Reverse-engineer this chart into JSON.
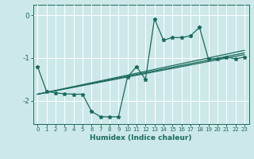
{
  "xlabel": "Humidex (Indice chaleur)",
  "bg_color": "#cde8e8",
  "grid_color": "#ffffff",
  "line_color": "#1a6b5a",
  "xlim": [
    -0.5,
    23.5
  ],
  "ylim": [
    -2.55,
    0.25
  ],
  "xticks": [
    0,
    1,
    2,
    3,
    4,
    5,
    6,
    7,
    8,
    9,
    10,
    11,
    12,
    13,
    14,
    15,
    16,
    17,
    18,
    19,
    20,
    21,
    22,
    23
  ],
  "yticks": [
    0,
    -1,
    -2
  ],
  "lines": [
    {
      "x": [
        0,
        1,
        2,
        3,
        4,
        5,
        6,
        7,
        8,
        9,
        10,
        11,
        12,
        13,
        14,
        15,
        16,
        17,
        18,
        19,
        20,
        21,
        22,
        23
      ],
      "y": [
        -1.2,
        -1.78,
        -1.82,
        -1.84,
        -1.85,
        -1.85,
        -2.25,
        -2.38,
        -2.38,
        -2.38,
        -1.45,
        -1.2,
        -1.5,
        -0.08,
        -0.58,
        -0.52,
        -0.52,
        -0.48,
        -0.28,
        -1.02,
        -1.02,
        -0.98,
        -1.02,
        -0.98
      ]
    },
    {
      "x": [
        0,
        23
      ],
      "y": [
        -1.85,
        -0.82
      ]
    },
    {
      "x": [
        0,
        23
      ],
      "y": [
        -1.85,
        -0.88
      ]
    },
    {
      "x": [
        0,
        23
      ],
      "y": [
        -1.85,
        -0.92
      ]
    }
  ]
}
